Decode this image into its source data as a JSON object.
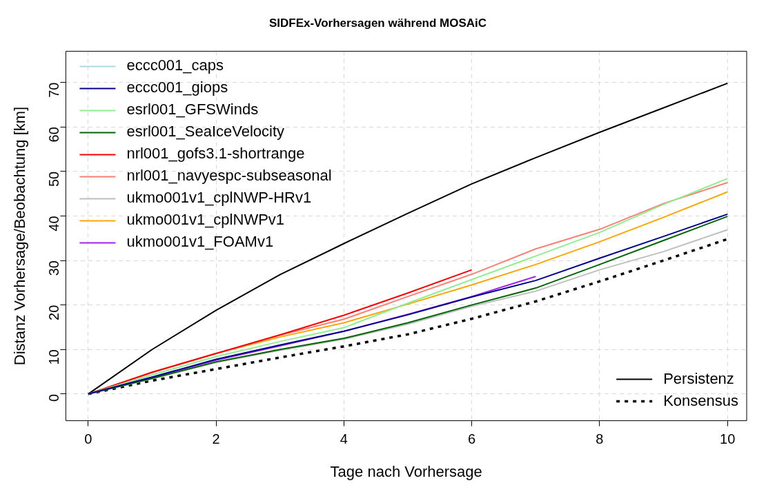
{
  "chart_data": {
    "type": "line",
    "title": "SIDFEx-Vorhersagen während MOSAiC",
    "xlabel": "Tage nach Vorhersage",
    "ylabel": "Distanz Vorhersage/Beobachtung [km]",
    "x": [
      0,
      1,
      2,
      3,
      4,
      5,
      6,
      7,
      8,
      9,
      10
    ],
    "xlim": [
      -0.35,
      10.3
    ],
    "xticks": [
      0,
      2,
      4,
      6,
      8,
      10
    ],
    "ylim": [
      -6,
      77
    ],
    "yticks": [
      0,
      10,
      20,
      30,
      40,
      50,
      60,
      70
    ],
    "grid": true,
    "legend": "top left",
    "marker": "none",
    "line_style": "solid",
    "series": [
      {
        "name": "eccc001_caps",
        "color": "#add8e6",
        "values": [
          null,
          null,
          null,
          null,
          null,
          null,
          null,
          null,
          null,
          null,
          null
        ]
      },
      {
        "name": "eccc001_giops",
        "color": "#00008b",
        "values": [
          0,
          3.8,
          7.8,
          11.0,
          14.1,
          17.8,
          21.8,
          25.5,
          30.5,
          35.4,
          40.4
        ]
      },
      {
        "name": "esrl001_GFSWinds",
        "color": "#90ee90",
        "values": [
          0,
          4.3,
          8.4,
          11.8,
          14.9,
          20.4,
          25.7,
          31.0,
          36.3,
          42.6,
          48.4
        ]
      },
      {
        "name": "esrl001_SeaIceVelocity",
        "color": "#006400",
        "values": [
          0,
          3.5,
          7.2,
          10.0,
          12.5,
          16.0,
          20.0,
          23.8,
          29.1,
          34.5,
          39.9
        ]
      },
      {
        "name": "nrl001_gofs3.1-shortrange",
        "color": "#ff0000",
        "values": [
          0,
          4.9,
          9.1,
          13.3,
          17.7,
          22.7,
          27.9,
          null,
          null,
          null,
          null
        ]
      },
      {
        "name": "nrl001_navyespc-subseasonal",
        "color": "#fa8072",
        "values": [
          0,
          4.8,
          9.1,
          13.2,
          16.8,
          21.9,
          26.9,
          32.6,
          37.0,
          42.8,
          47.5
        ]
      },
      {
        "name": "ukmo001v1_cplNWP-HRv1",
        "color": "#bebebe",
        "values": [
          0,
          3.4,
          7.1,
          9.8,
          12.3,
          15.7,
          19.7,
          23.1,
          27.9,
          32.0,
          36.9
        ]
      },
      {
        "name": "ukmo001v1_cplNWPv1",
        "color": "#ffa500",
        "values": [
          0,
          4.9,
          9.1,
          12.8,
          16.0,
          20.2,
          24.5,
          29.1,
          34.2,
          39.7,
          45.4
        ]
      },
      {
        "name": "ukmo001v1_FOAMv1",
        "color": "#a020f0",
        "values": [
          0,
          3.7,
          7.6,
          10.8,
          14.1,
          17.9,
          21.9,
          26.4,
          null,
          null,
          null
        ]
      },
      {
        "name": "Persistenz",
        "color": "#000000",
        "values": [
          0,
          10.0,
          18.8,
          26.8,
          33.8,
          40.6,
          47.2,
          53.1,
          58.8,
          64.3,
          69.8
        ]
      },
      {
        "name": "Konsensus",
        "color": "#000000",
        "line_style": "dotted",
        "values": [
          0,
          3.0,
          5.6,
          8.2,
          10.7,
          13.4,
          16.9,
          20.8,
          25.3,
          30.0,
          34.8
        ]
      }
    ]
  }
}
